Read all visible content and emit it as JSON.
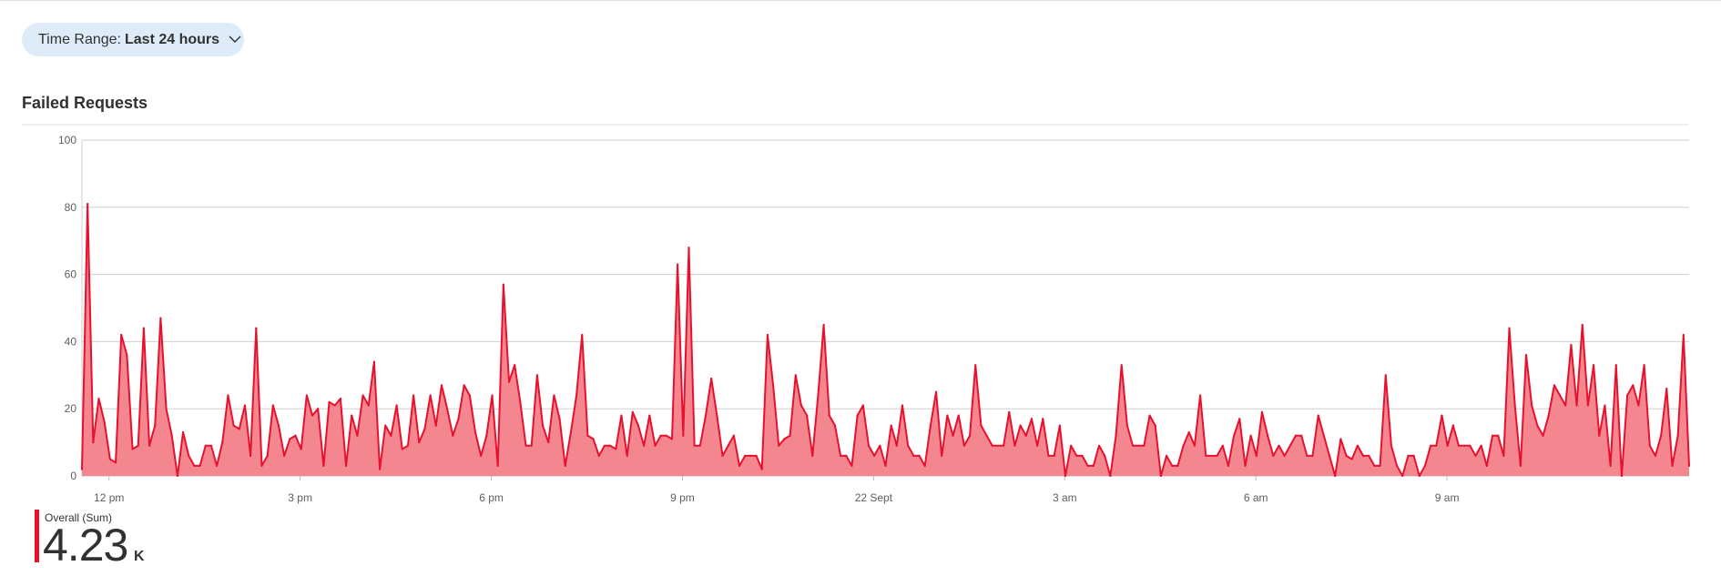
{
  "time_range": {
    "label": "Time Range:",
    "value": "Last 24 hours"
  },
  "chart_title": "Failed Requests",
  "legend": {
    "name": "Overall (Sum)",
    "value": "4.23",
    "unit": "K",
    "color": "#e8112d"
  },
  "chart_data": {
    "type": "area",
    "title": "Failed Requests",
    "xlabel": "",
    "ylabel": "",
    "ylim": [
      0,
      100
    ],
    "yticks": [
      0,
      20,
      40,
      60,
      80,
      100
    ],
    "xlim": [
      -25.5,
      1488
    ],
    "xticks": [
      {
        "minute": 0,
        "label": "12 pm"
      },
      {
        "minute": 180,
        "label": "3 pm"
      },
      {
        "minute": 360,
        "label": "6 pm"
      },
      {
        "minute": 540,
        "label": "9 pm"
      },
      {
        "minute": 720,
        "label": "22 Sept"
      },
      {
        "minute": 900,
        "label": "3 am"
      },
      {
        "minute": 1080,
        "label": "6 am"
      },
      {
        "minute": 1260,
        "label": "9 am"
      }
    ],
    "x_units": "minutes from 12 pm",
    "grid": true,
    "series": [
      {
        "color": "#e8112d",
        "fill": "#f4868f",
        "values": [
          2,
          81,
          10,
          23,
          16,
          5,
          4,
          42,
          36,
          8,
          9,
          44,
          9,
          15,
          47,
          20,
          12,
          0,
          13,
          6,
          3,
          3,
          9,
          9,
          3,
          10,
          24,
          15,
          14,
          21,
          6,
          44,
          3,
          6,
          21,
          15,
          6,
          11,
          12,
          8,
          24,
          18,
          20,
          3,
          22,
          21,
          23,
          3,
          18,
          12,
          24,
          21,
          34,
          2,
          15,
          12,
          21,
          8,
          9,
          24,
          10,
          14,
          24,
          15,
          27,
          20,
          12,
          17,
          27,
          24,
          13,
          6,
          12,
          24,
          3,
          57,
          28,
          33,
          22,
          9,
          9,
          30,
          15,
          10,
          24,
          17,
          3,
          13,
          24,
          42,
          12,
          11,
          6,
          9,
          9,
          8,
          18,
          6,
          19,
          15,
          9,
          18,
          9,
          12,
          12,
          11,
          63,
          12,
          68,
          9,
          9,
          18,
          29,
          18,
          6,
          9,
          12,
          3,
          6,
          6,
          6,
          2,
          42,
          27,
          9,
          11,
          12,
          30,
          21,
          18,
          6,
          24,
          45,
          18,
          15,
          6,
          6,
          3,
          18,
          21,
          9,
          6,
          9,
          3,
          15,
          9,
          21,
          9,
          6,
          6,
          3,
          15,
          25,
          6,
          18,
          12,
          18,
          9,
          12,
          33,
          15,
          12,
          9,
          9,
          9,
          19,
          9,
          15,
          12,
          17,
          9,
          17,
          6,
          6,
          15,
          0,
          9,
          6,
          6,
          3,
          3,
          9,
          6,
          0,
          12,
          33,
          15,
          9,
          9,
          9,
          18,
          15,
          0,
          6,
          3,
          3,
          9,
          13,
          9,
          24,
          6,
          6,
          6,
          9,
          3,
          12,
          17,
          3,
          12,
          6,
          19,
          12,
          6,
          9,
          6,
          9,
          12,
          12,
          6,
          6,
          18,
          12,
          6,
          0,
          11,
          6,
          5,
          9,
          6,
          6,
          3,
          3,
          30,
          9,
          3,
          0,
          6,
          6,
          0,
          3,
          9,
          9,
          18,
          9,
          15,
          9,
          9,
          9,
          6,
          9,
          3,
          12,
          12,
          6,
          44,
          21,
          3,
          36,
          21,
          15,
          12,
          18,
          27,
          24,
          21,
          39,
          21,
          45,
          21,
          33,
          12,
          21,
          3,
          33,
          0,
          24,
          27,
          21,
          33,
          9,
          6,
          12,
          26,
          3,
          12,
          42,
          3
        ]
      }
    ]
  }
}
